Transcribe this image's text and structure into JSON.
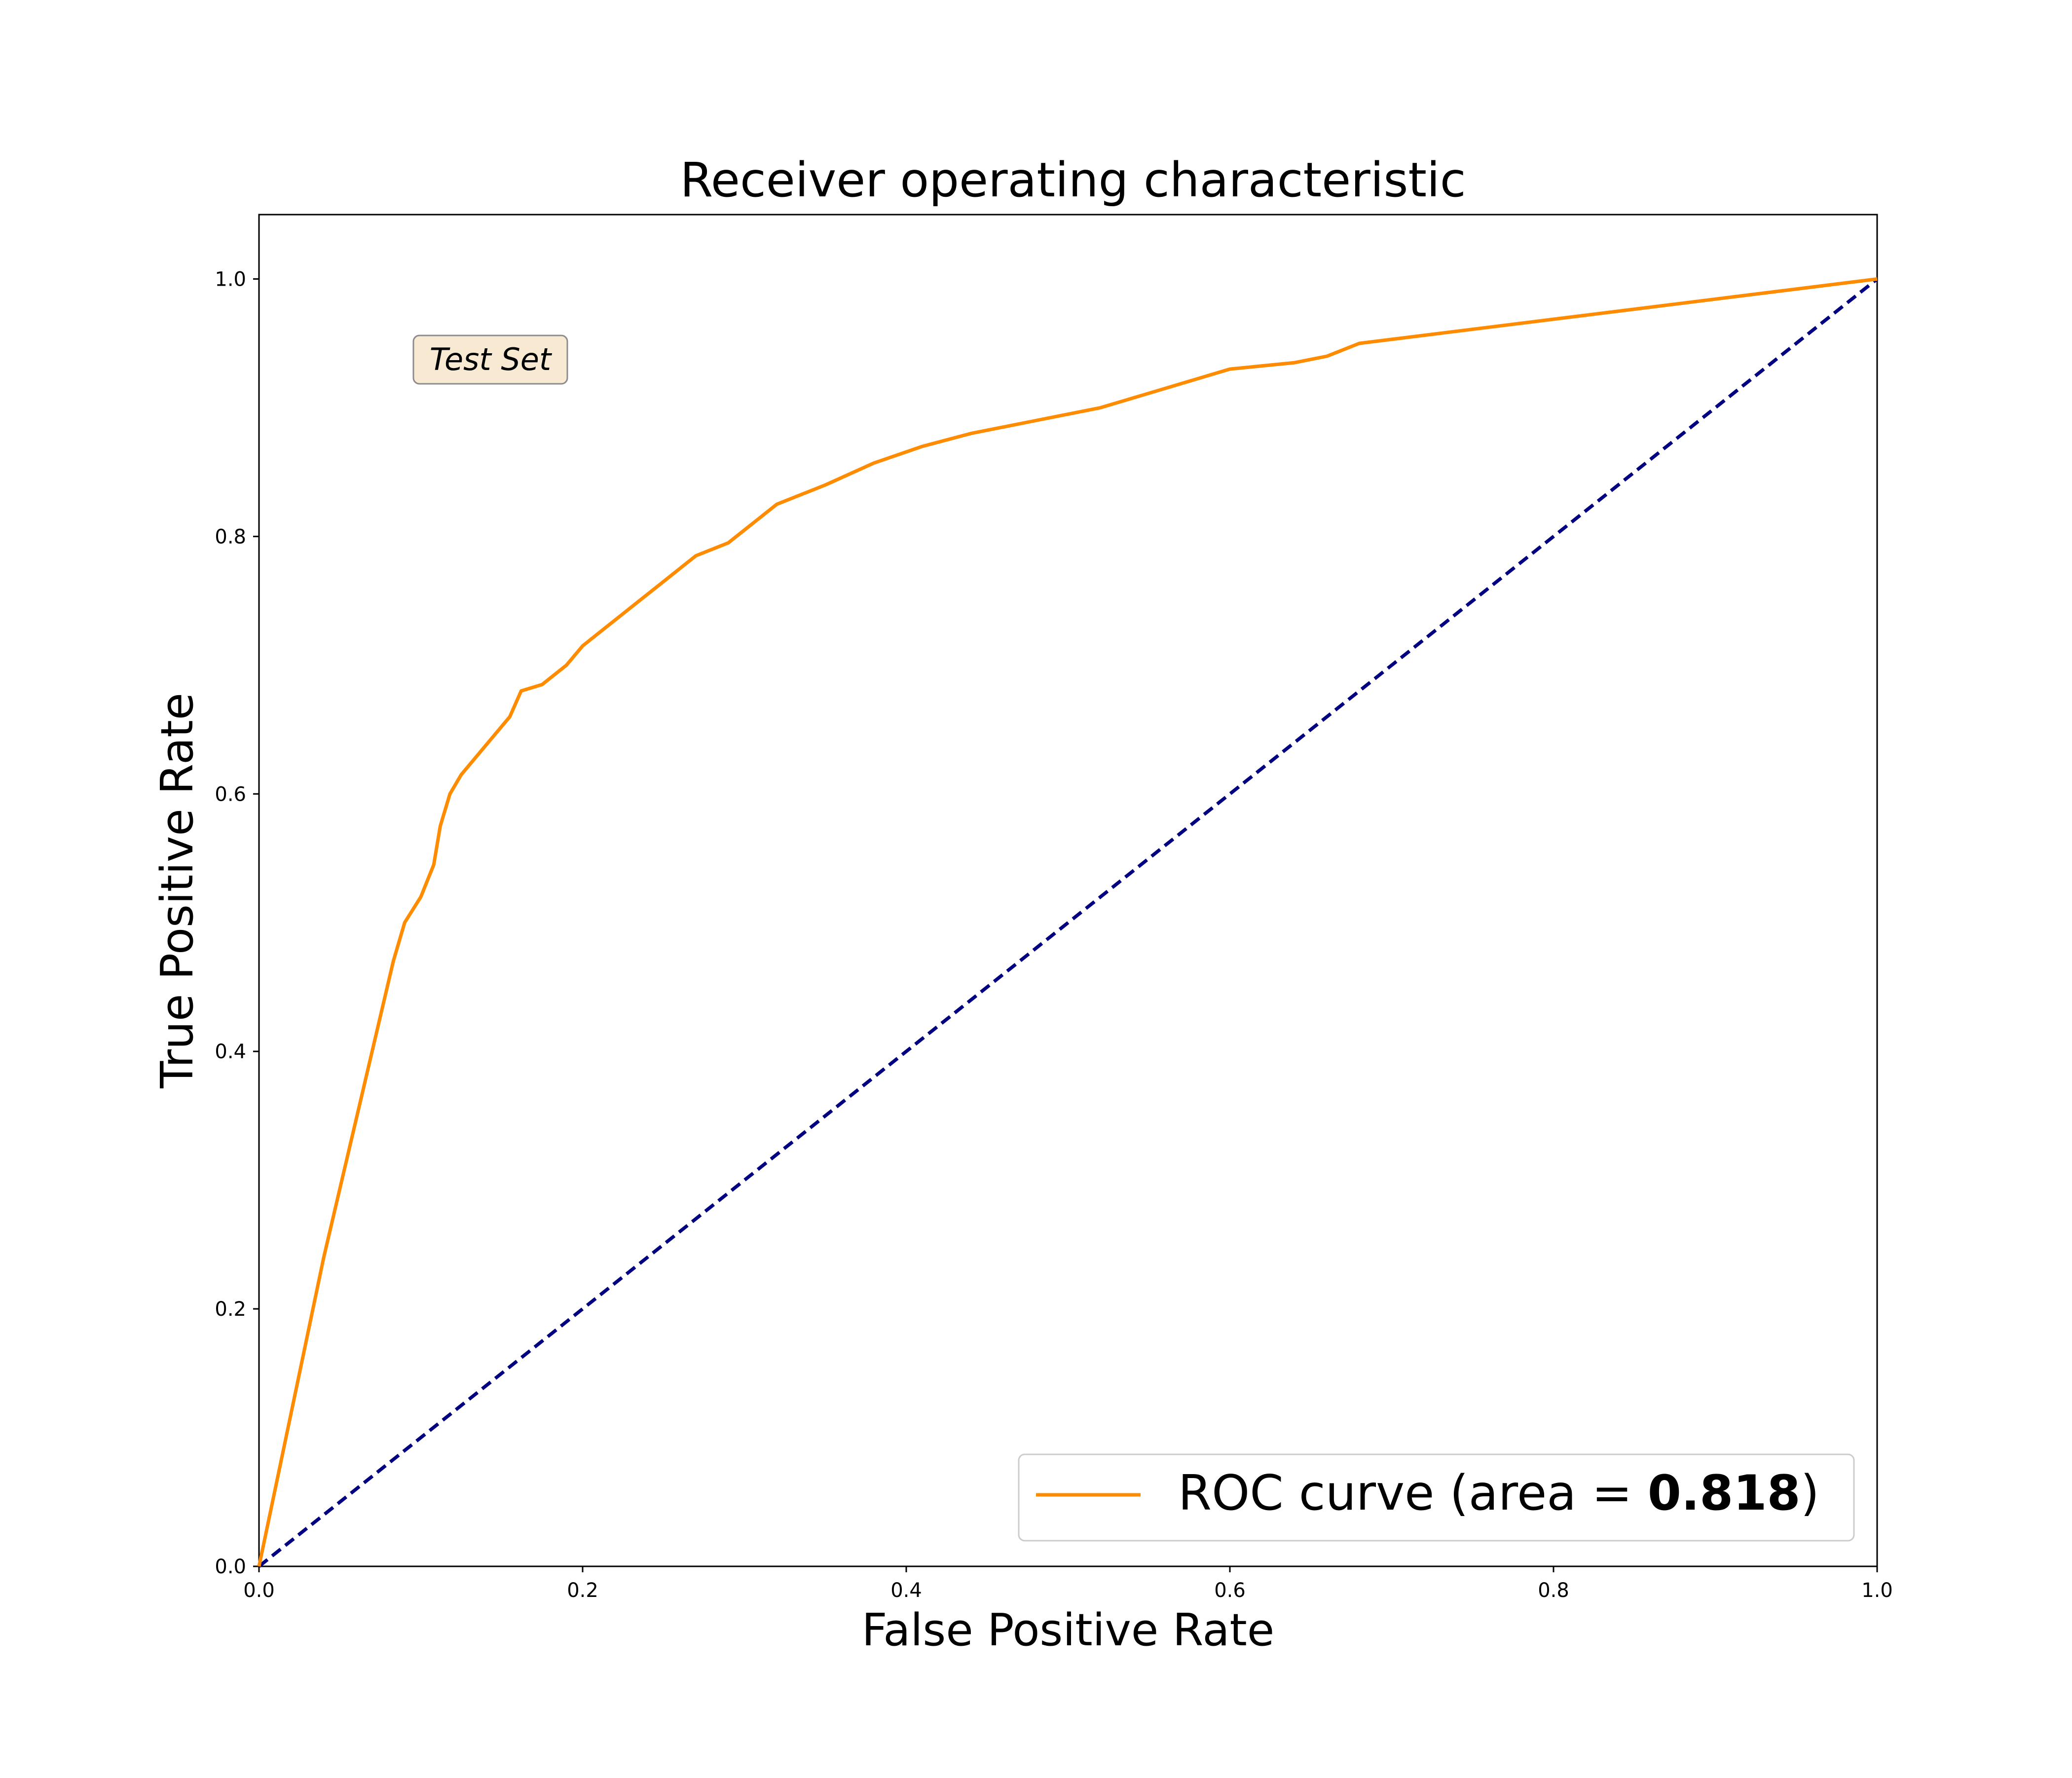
{
  "chart_data": {
    "type": "line",
    "title": "Receiver operating characteristic",
    "xlabel": "False Positive Rate",
    "ylabel": "True Positive Rate",
    "xlim": [
      0.0,
      1.0
    ],
    "ylim": [
      0.0,
      1.05
    ],
    "x_ticks": [
      "0.0",
      "0.2",
      "0.4",
      "0.6",
      "0.8",
      "1.0"
    ],
    "y_ticks": [
      "0.0",
      "0.2",
      "0.4",
      "0.6",
      "0.8",
      "1.0"
    ],
    "grid": false,
    "legend_position": "lower-right",
    "annotation": "Test Set",
    "legend": {
      "prefix": "ROC curve (area = ",
      "value": "0.818",
      "suffix": ")"
    },
    "series": [
      {
        "name": "ROC curve (area = 0.818)",
        "color": "#ff8c00",
        "line_style": "solid",
        "x": [
          0.0,
          0.04,
          0.083,
          0.09,
          0.1,
          0.108,
          0.112,
          0.118,
          0.125,
          0.135,
          0.145,
          0.155,
          0.162,
          0.175,
          0.19,
          0.2,
          0.215,
          0.23,
          0.25,
          0.27,
          0.29,
          0.305,
          0.32,
          0.35,
          0.38,
          0.41,
          0.44,
          0.48,
          0.52,
          0.56,
          0.6,
          0.64,
          0.66,
          0.68,
          1.0
        ],
        "y": [
          0.0,
          0.24,
          0.47,
          0.5,
          0.52,
          0.545,
          0.575,
          0.6,
          0.615,
          0.63,
          0.645,
          0.66,
          0.68,
          0.685,
          0.7,
          0.715,
          0.73,
          0.745,
          0.765,
          0.785,
          0.795,
          0.81,
          0.825,
          0.84,
          0.857,
          0.87,
          0.88,
          0.89,
          0.9,
          0.915,
          0.93,
          0.935,
          0.94,
          0.95,
          1.0
        ]
      },
      {
        "color": "#000080",
        "line_style": "dashed",
        "x": [
          0.0,
          1.0
        ],
        "y": [
          0.0,
          1.0
        ]
      }
    ]
  },
  "colors": {
    "roc": "#ff8c00",
    "chance": "#000080",
    "annotation_bg": "#f8ead2"
  }
}
